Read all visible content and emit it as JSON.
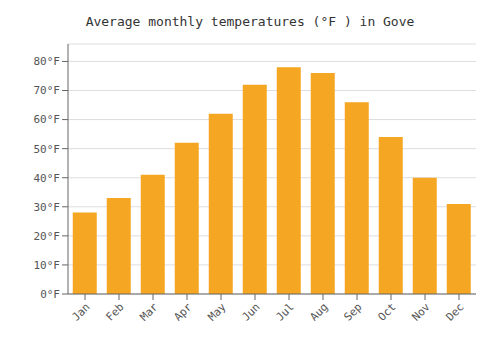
{
  "chart_data": {
    "type": "bar",
    "title": "Average monthly temperatures (°F ) in Gove",
    "categories": [
      "Jan",
      "Feb",
      "Mar",
      "Apr",
      "May",
      "Jun",
      "Jul",
      "Aug",
      "Sep",
      "Oct",
      "Nov",
      "Dec"
    ],
    "values": [
      28,
      33,
      41,
      52,
      62,
      72,
      78,
      76,
      66,
      54,
      40,
      31
    ],
    "color": "#F5A623",
    "ylim": [
      0,
      86
    ],
    "yticks": [
      {
        "value": 0,
        "label": "0°F"
      },
      {
        "value": 10,
        "label": "10°F"
      },
      {
        "value": 20,
        "label": "20°F"
      },
      {
        "value": 30,
        "label": "30°F"
      },
      {
        "value": 40,
        "label": "40°F"
      },
      {
        "value": 50,
        "label": "50°F"
      },
      {
        "value": 60,
        "label": "60°F"
      },
      {
        "value": 70,
        "label": "70°F"
      },
      {
        "value": 80,
        "label": "80°F"
      }
    ],
    "grid": true
  }
}
